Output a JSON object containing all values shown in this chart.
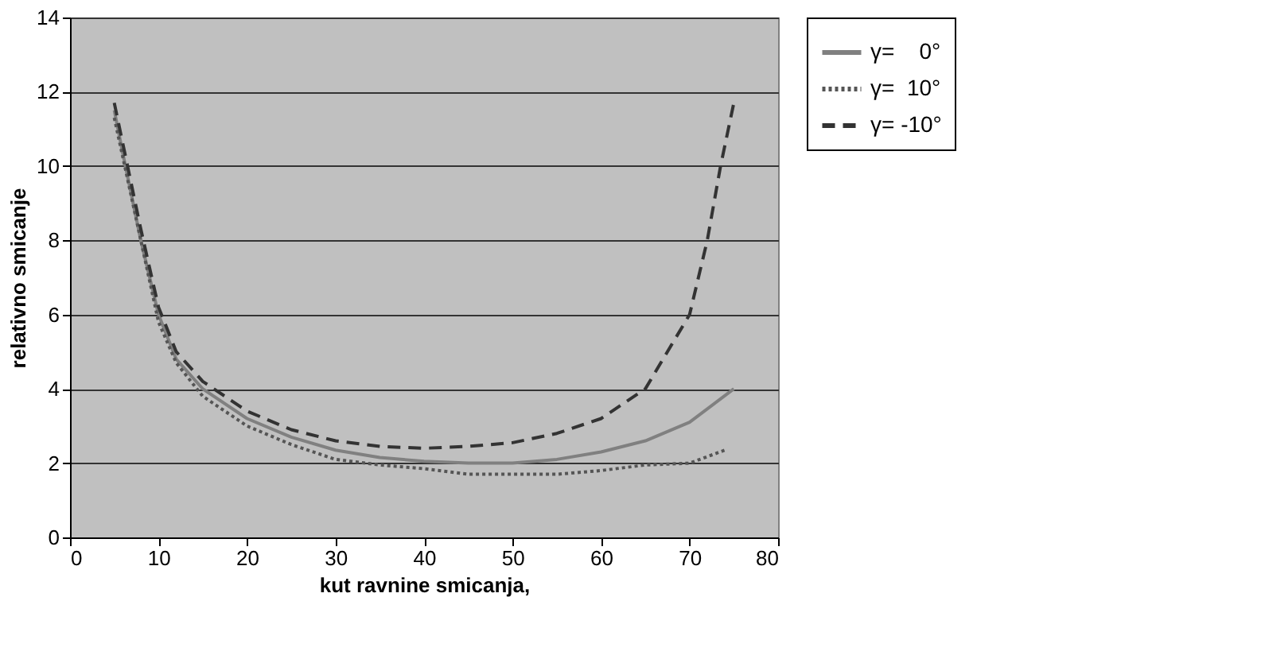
{
  "chart_data": {
    "type": "line",
    "xlabel": "kut ravnine smicanja,",
    "ylabel": "relativno smicanje",
    "xlim": [
      0,
      80
    ],
    "xticks": [
      0,
      10,
      20,
      30,
      40,
      50,
      60,
      70,
      80
    ],
    "ylim": [
      0,
      14
    ],
    "yticks": [
      0,
      2,
      4,
      6,
      8,
      10,
      12,
      14
    ],
    "grid": "y",
    "legend": "right",
    "marker": "none",
    "series": [
      {
        "name": "γ=    0°",
        "color": "#808080",
        "line_style": "solid",
        "x": [
          5,
          6,
          8,
          10,
          12,
          15,
          20,
          25,
          30,
          35,
          40,
          45,
          50,
          55,
          60,
          65,
          70,
          75
        ],
        "values": [
          11.5,
          10.3,
          8,
          6,
          4.8,
          4,
          3.2,
          2.7,
          2.35,
          2.15,
          2.05,
          2,
          2,
          2.1,
          2.3,
          2.6,
          3.1,
          4
        ]
      },
      {
        "name": "γ=  10°",
        "color": "#555555",
        "line_style": "dotted",
        "x": [
          5,
          8,
          10,
          12,
          15,
          20,
          25,
          30,
          35,
          40,
          45,
          50,
          55,
          60,
          65,
          70,
          74
        ],
        "values": [
          11.3,
          8,
          5.8,
          4.7,
          3.8,
          3,
          2.5,
          2.1,
          1.95,
          1.85,
          1.7,
          1.7,
          1.7,
          1.8,
          1.95,
          2,
          2.35
        ]
      },
      {
        "name": "γ= -10°",
        "color": "#333333",
        "line_style": "dashed",
        "x": [
          5,
          8,
          10,
          12,
          15,
          20,
          25,
          30,
          35,
          40,
          45,
          50,
          55,
          60,
          65,
          68,
          70,
          72,
          73.5,
          75
        ],
        "values": [
          11.7,
          8.3,
          6.2,
          5,
          4.2,
          3.4,
          2.9,
          2.6,
          2.45,
          2.4,
          2.45,
          2.55,
          2.8,
          3.2,
          4,
          5.2,
          6,
          8,
          10,
          11.7
        ]
      }
    ]
  }
}
